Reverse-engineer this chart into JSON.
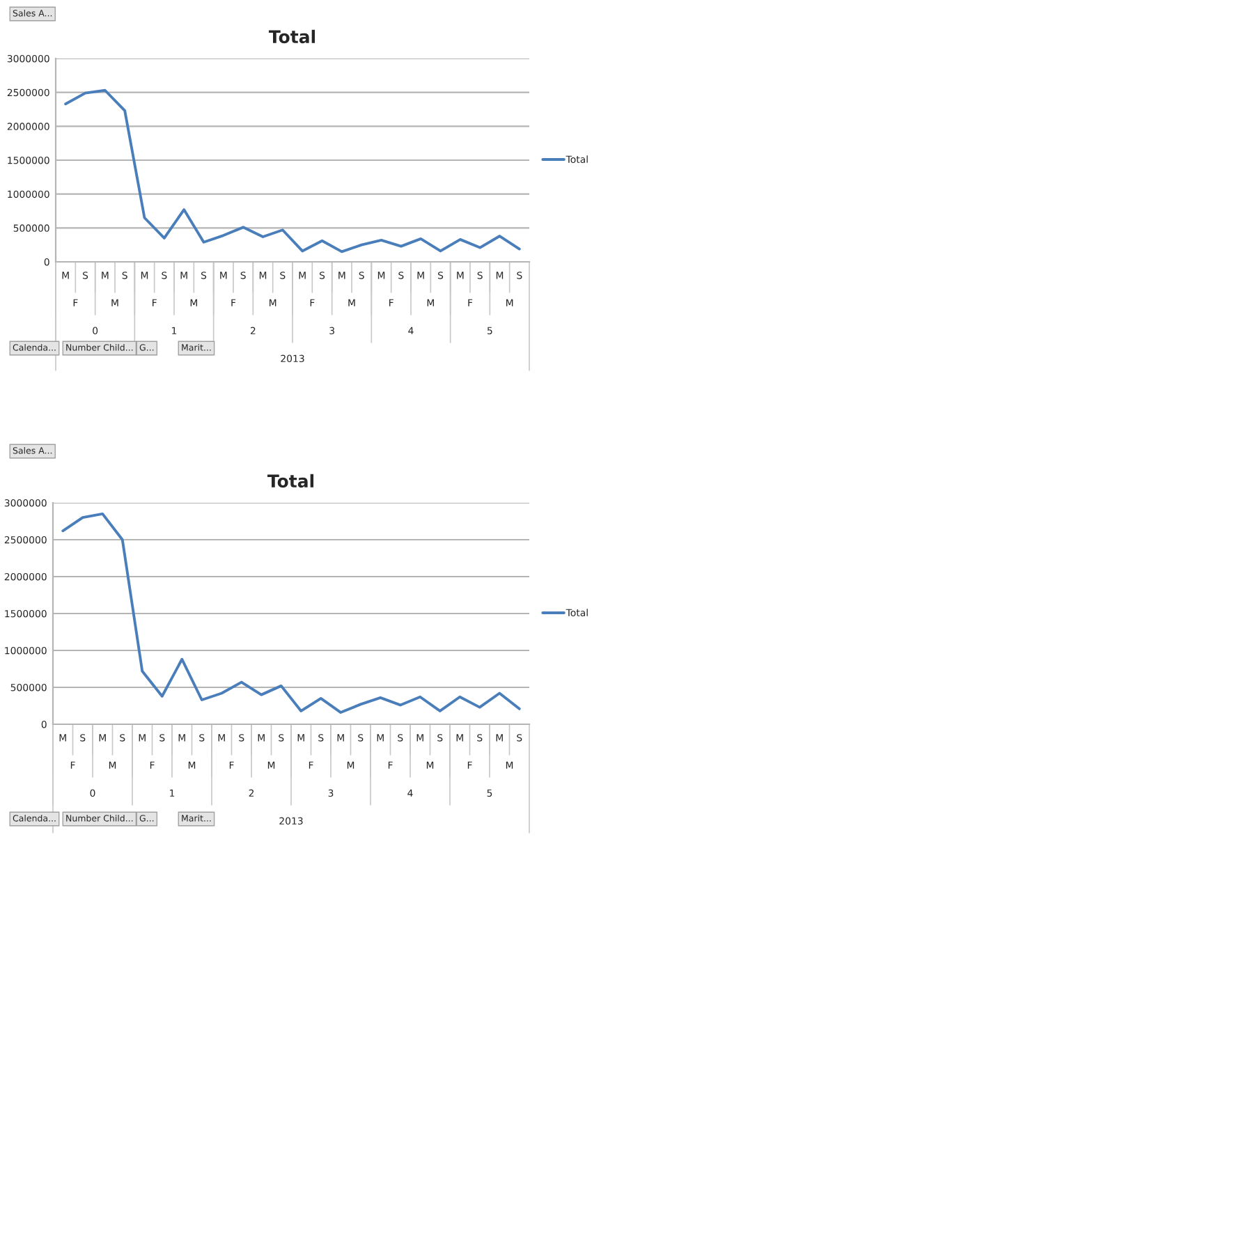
{
  "chart_data": [
    {
      "type": "line",
      "title": "Total",
      "categories": [
        "M",
        "S",
        "M",
        "S",
        "M",
        "S",
        "M",
        "S",
        "M",
        "S",
        "M",
        "S",
        "M",
        "S",
        "M",
        "S",
        "M",
        "S",
        "M",
        "S",
        "M",
        "S",
        "M",
        "S"
      ],
      "series": [
        {
          "name": "Total",
          "color": "#4a7ebb",
          "values": [
            2330000,
            2490000,
            2530000,
            2230000,
            650000,
            350000,
            770000,
            290000,
            390000,
            510000,
            370000,
            470000,
            160000,
            310000,
            150000,
            250000,
            320000,
            230000,
            340000,
            160000,
            330000,
            210000,
            380000,
            190000
          ]
        }
      ],
      "ylim": [
        0,
        3000000
      ],
      "yticks": [
        0,
        500000,
        1000000,
        1500000,
        2000000,
        2500000,
        3000000
      ],
      "grid": "y",
      "legend": "right",
      "annotations": [
        "Sales A...",
        "F",
        "M",
        "F",
        "M",
        "F",
        "M",
        "F",
        "M",
        "F",
        "M",
        "F",
        "M",
        "0",
        "1",
        "2",
        "3",
        "4",
        "5",
        "2013",
        "Calenda...",
        "Number Child...",
        "G...",
        "Marit..."
      ]
    },
    {
      "type": "line",
      "title": "Total",
      "categories": [
        "M",
        "S",
        "M",
        "S",
        "M",
        "S",
        "M",
        "S",
        "M",
        "S",
        "M",
        "S",
        "M",
        "S",
        "M",
        "S",
        "M",
        "S",
        "M",
        "S",
        "M",
        "S",
        "M",
        "S"
      ],
      "series": [
        {
          "name": "Total",
          "color": "#4a7ebb",
          "values": [
            2620000,
            2800000,
            2850000,
            2500000,
            720000,
            380000,
            880000,
            330000,
            420000,
            570000,
            400000,
            520000,
            180000,
            350000,
            160000,
            270000,
            360000,
            260000,
            370000,
            180000,
            370000,
            230000,
            420000,
            210000
          ]
        }
      ],
      "ylim": [
        0,
        3000000
      ],
      "yticks": [
        0,
        500000,
        1000000,
        1500000,
        2000000,
        2500000,
        3000000
      ],
      "grid": "y",
      "legend": "right",
      "annotations": [
        "Sales A...",
        "F",
        "M",
        "F",
        "M",
        "F",
        "M",
        "F",
        "M",
        "F",
        "M",
        "F",
        "M",
        "0",
        "1",
        "2",
        "3",
        "4",
        "5",
        "2013",
        "Calenda...",
        "Number Child...",
        "G...",
        "Marit..."
      ]
    }
  ]
}
